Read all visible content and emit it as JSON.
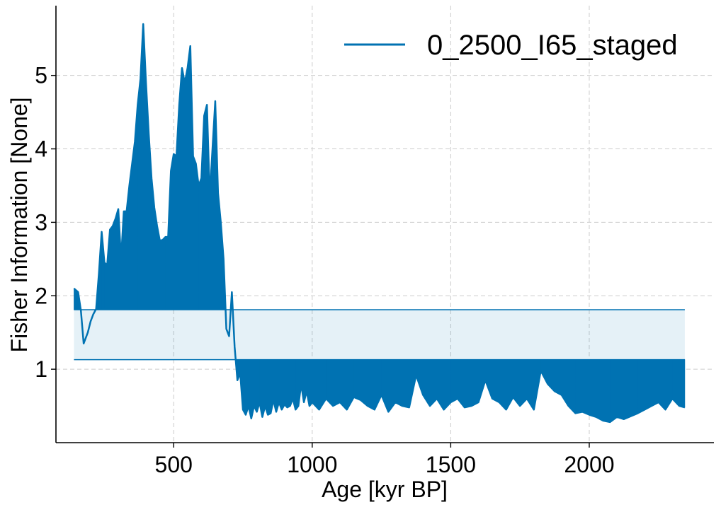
{
  "chart_data": {
    "type": "area",
    "xlabel": "Age [kyr BP]",
    "ylabel": "Fisher Information [None]",
    "xlim": [
      75,
      2450
    ],
    "ylim": [
      0.0,
      5.95
    ],
    "xticks": [
      500,
      1000,
      1500,
      2000
    ],
    "yticks": [
      1,
      2,
      3,
      4,
      5
    ],
    "grid": true,
    "legend": {
      "position": "top-right",
      "entries": [
        "0_2500_I65_staged"
      ]
    },
    "series": [
      {
        "name": "0_2500_I65_staged",
        "color": "#0072b2",
        "x": [
          140,
          155,
          165,
          175,
          190,
          200,
          210,
          220,
          230,
          240,
          250,
          260,
          270,
          280,
          290,
          300,
          310,
          320,
          330,
          340,
          350,
          360,
          370,
          380,
          390,
          400,
          410,
          420,
          430,
          440,
          450,
          460,
          470,
          480,
          490,
          500,
          510,
          520,
          530,
          540,
          550,
          560,
          570,
          580,
          590,
          600,
          610,
          620,
          630,
          640,
          650,
          660,
          670,
          680,
          690,
          700,
          710,
          720,
          730,
          740,
          750,
          760,
          770,
          780,
          790,
          800,
          810,
          820,
          830,
          840,
          850,
          860,
          870,
          880,
          890,
          900,
          910,
          920,
          930,
          940,
          950,
          960,
          970,
          980,
          990,
          1000,
          1025,
          1050,
          1075,
          1100,
          1125,
          1150,
          1175,
          1200,
          1225,
          1250,
          1275,
          1300,
          1325,
          1350,
          1375,
          1400,
          1425,
          1450,
          1475,
          1500,
          1525,
          1550,
          1575,
          1600,
          1625,
          1650,
          1675,
          1700,
          1725,
          1750,
          1775,
          1800,
          1825,
          1850,
          1875,
          1900,
          1925,
          1950,
          1975,
          2000,
          2025,
          2050,
          2075,
          2100,
          2125,
          2150,
          2175,
          2200,
          2225,
          2250,
          2275,
          2300,
          2325,
          2345
        ],
        "values": [
          2.1,
          2.05,
          1.8,
          1.35,
          1.5,
          1.65,
          1.75,
          1.82,
          2.3,
          2.87,
          2.45,
          2.42,
          2.9,
          2.95,
          3.05,
          3.18,
          2.5,
          3.15,
          3.15,
          3.5,
          3.8,
          4.1,
          4.6,
          4.95,
          5.7,
          4.9,
          4.2,
          3.6,
          3.2,
          2.95,
          2.75,
          2.76,
          2.8,
          2.8,
          3.7,
          3.93,
          3.9,
          4.6,
          5.1,
          4.9,
          5.1,
          5.4,
          3.9,
          3.8,
          3.5,
          3.6,
          4.45,
          4.6,
          3.35,
          4.0,
          4.65,
          3.4,
          3.0,
          2.5,
          1.55,
          1.45,
          2.05,
          1.3,
          0.85,
          0.95,
          0.45,
          0.38,
          0.5,
          0.33,
          0.5,
          0.42,
          0.55,
          0.35,
          0.5,
          0.38,
          0.4,
          0.58,
          0.42,
          0.55,
          0.45,
          0.52,
          0.48,
          0.5,
          0.6,
          0.45,
          0.5,
          0.8,
          0.55,
          0.7,
          0.5,
          0.55,
          0.45,
          0.6,
          0.5,
          0.55,
          0.45,
          0.62,
          0.58,
          0.5,
          0.45,
          0.65,
          0.42,
          0.55,
          0.5,
          0.48,
          0.92,
          0.65,
          0.5,
          0.6,
          0.45,
          0.55,
          0.6,
          0.48,
          0.5,
          0.55,
          0.85,
          0.6,
          0.55,
          0.45,
          0.62,
          0.5,
          0.6,
          0.45,
          0.98,
          0.8,
          0.7,
          0.65,
          0.5,
          0.4,
          0.42,
          0.38,
          0.35,
          0.3,
          0.28,
          0.35,
          0.32,
          0.36,
          0.4,
          0.45,
          0.5,
          0.55,
          0.45,
          0.6,
          0.5,
          0.48
        ]
      }
    ],
    "band": {
      "lower": 1.13,
      "upper": 1.81
    }
  }
}
